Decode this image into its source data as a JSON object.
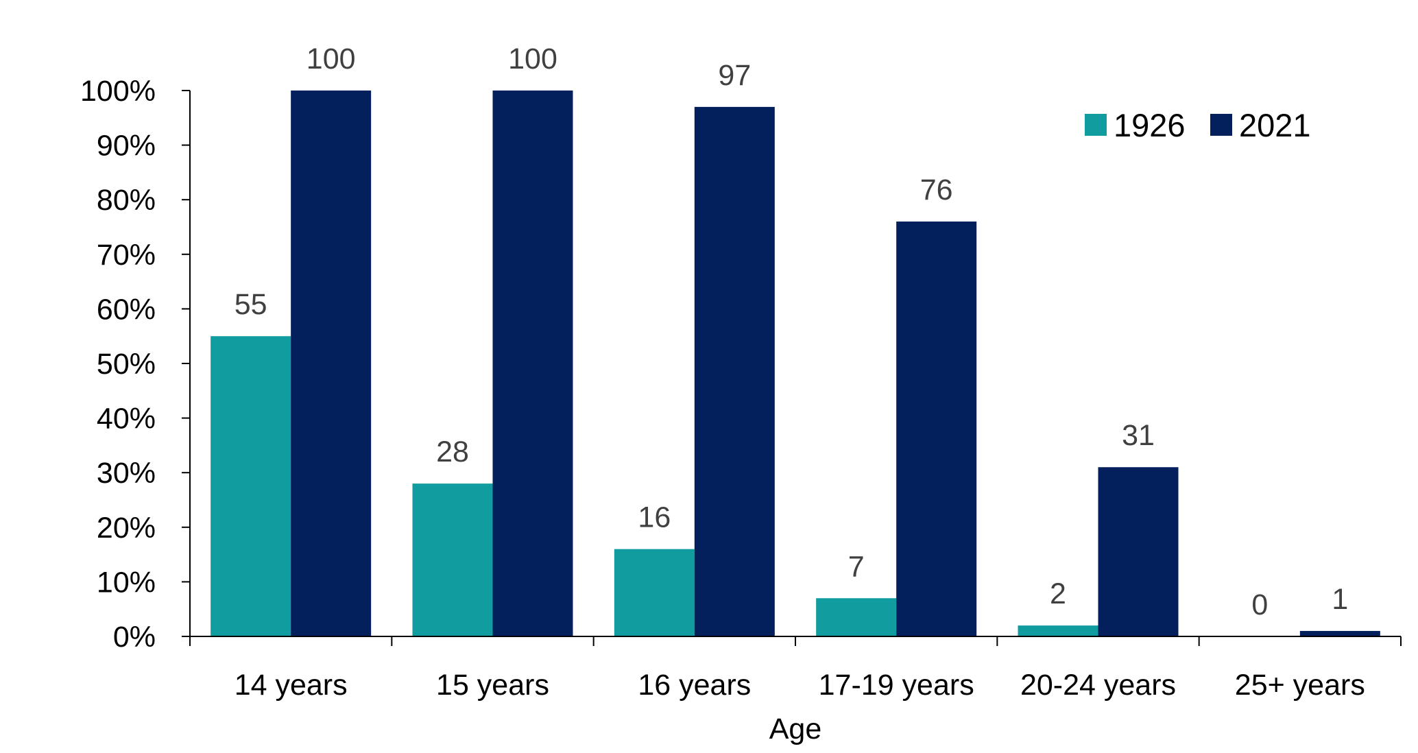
{
  "chart_data": {
    "type": "bar",
    "categories": [
      "14 years",
      "15 years",
      "16 years",
      "17-19 years",
      "20-24 years",
      "25+ years"
    ],
    "series": [
      {
        "name": "1926",
        "color": "#119C9F",
        "values": [
          55,
          28,
          16,
          7,
          2,
          0
        ]
      },
      {
        "name": "2021",
        "color": "#03205C",
        "values": [
          100,
          100,
          97,
          76,
          31,
          1
        ]
      }
    ],
    "y_ticks": [
      "0%",
      "10%",
      "20%",
      "30%",
      "40%",
      "50%",
      "60%",
      "70%",
      "80%",
      "90%",
      "100%"
    ],
    "ylim": [
      0,
      100
    ],
    "xlabel": "Age",
    "ylabel": "",
    "grid": false,
    "legend_position": "top-right"
  }
}
